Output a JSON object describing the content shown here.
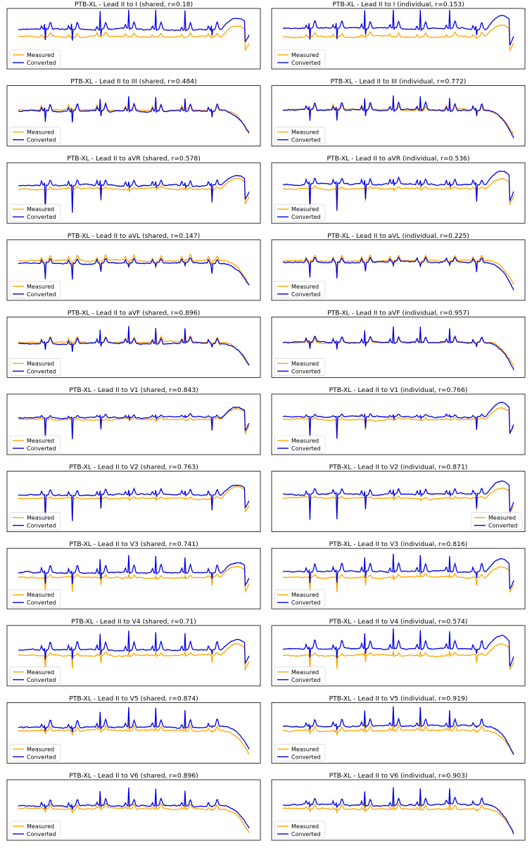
{
  "colors": {
    "measured": "#ffa500",
    "converted": "#0000e6",
    "frame": "#000000"
  },
  "legend_labels": {
    "measured": "Measured",
    "converted": "Converted"
  },
  "chart_data": [
    {
      "type": "line",
      "title": "PTB-XL - Lead II to I (shared, r=0.18)",
      "lead": "I",
      "mode": "shared",
      "r": 0.18,
      "legend_position": "lower-left",
      "axes_visible": false,
      "series": [
        {
          "name": "Measured",
          "color": "#ffa500"
        },
        {
          "name": "Converted",
          "color": "#0000e6"
        }
      ]
    },
    {
      "type": "line",
      "title": "PTB-XL - Lead II to I (individual, r=0.153)",
      "lead": "I",
      "mode": "individual",
      "r": 0.153,
      "legend_position": "lower-left",
      "axes_visible": false,
      "series": [
        {
          "name": "Measured",
          "color": "#ffa500"
        },
        {
          "name": "Converted",
          "color": "#0000e6"
        }
      ]
    },
    {
      "type": "line",
      "title": "PTB-XL - Lead II to III (shared, r=0.484)",
      "lead": "III",
      "mode": "shared",
      "r": 0.484,
      "legend_position": "lower-left",
      "axes_visible": false,
      "series": [
        {
          "name": "Measured",
          "color": "#ffa500"
        },
        {
          "name": "Converted",
          "color": "#0000e6"
        }
      ]
    },
    {
      "type": "line",
      "title": "PTB-XL - Lead II to III (individual, r=0.772)",
      "lead": "III",
      "mode": "individual",
      "r": 0.772,
      "legend_position": "lower-left",
      "axes_visible": false,
      "series": [
        {
          "name": "Measured",
          "color": "#ffa500"
        },
        {
          "name": "Converted",
          "color": "#0000e6"
        }
      ]
    },
    {
      "type": "line",
      "title": "PTB-XL - Lead II to aVR (shared, r=0.578)",
      "lead": "aVR",
      "mode": "shared",
      "r": 0.578,
      "legend_position": "lower-left",
      "axes_visible": false,
      "series": [
        {
          "name": "Measured",
          "color": "#ffa500"
        },
        {
          "name": "Converted",
          "color": "#0000e6"
        }
      ]
    },
    {
      "type": "line",
      "title": "PTB-XL - Lead II to aVR (individual, r=0.536)",
      "lead": "aVR",
      "mode": "individual",
      "r": 0.536,
      "legend_position": "lower-left",
      "axes_visible": false,
      "series": [
        {
          "name": "Measured",
          "color": "#ffa500"
        },
        {
          "name": "Converted",
          "color": "#0000e6"
        }
      ]
    },
    {
      "type": "line",
      "title": "PTB-XL - Lead II to aVL (shared, r=0.147)",
      "lead": "aVL",
      "mode": "shared",
      "r": 0.147,
      "legend_position": "lower-left",
      "axes_visible": false,
      "series": [
        {
          "name": "Measured",
          "color": "#ffa500"
        },
        {
          "name": "Converted",
          "color": "#0000e6"
        }
      ]
    },
    {
      "type": "line",
      "title": "PTB-XL - Lead II to aVL (individual, r=0.225)",
      "lead": "aVL",
      "mode": "individual",
      "r": 0.225,
      "legend_position": "lower-left",
      "axes_visible": false,
      "series": [
        {
          "name": "Measured",
          "color": "#ffa500"
        },
        {
          "name": "Converted",
          "color": "#0000e6"
        }
      ]
    },
    {
      "type": "line",
      "title": "PTB-XL - Lead II to aVF (shared, r=0.896)",
      "lead": "aVF",
      "mode": "shared",
      "r": 0.896,
      "legend_position": "lower-left",
      "axes_visible": false,
      "series": [
        {
          "name": "Measured",
          "color": "#ffa500"
        },
        {
          "name": "Converted",
          "color": "#0000e6"
        }
      ]
    },
    {
      "type": "line",
      "title": "PTB-XL - Lead II to aVF (individual, r=0.957)",
      "lead": "aVF",
      "mode": "individual",
      "r": 0.957,
      "legend_position": "lower-left",
      "axes_visible": false,
      "series": [
        {
          "name": "Measured",
          "color": "#ffa500"
        },
        {
          "name": "Converted",
          "color": "#0000e6"
        }
      ]
    },
    {
      "type": "line",
      "title": "PTB-XL - Lead II to V1 (shared, r=0.843)",
      "lead": "V1",
      "mode": "shared",
      "r": 0.843,
      "legend_position": "lower-left",
      "axes_visible": false,
      "series": [
        {
          "name": "Measured",
          "color": "#ffa500"
        },
        {
          "name": "Converted",
          "color": "#0000e6"
        }
      ]
    },
    {
      "type": "line",
      "title": "PTB-XL - Lead II to V1 (individual, r=0.766)",
      "lead": "V1",
      "mode": "individual",
      "r": 0.766,
      "legend_position": "lower-left",
      "axes_visible": false,
      "series": [
        {
          "name": "Measured",
          "color": "#ffa500"
        },
        {
          "name": "Converted",
          "color": "#0000e6"
        }
      ]
    },
    {
      "type": "line",
      "title": "PTB-XL - Lead II to V2 (shared, r=0.763)",
      "lead": "V2",
      "mode": "shared",
      "r": 0.763,
      "legend_position": "lower-left",
      "axes_visible": false,
      "series": [
        {
          "name": "Measured",
          "color": "#ffa500"
        },
        {
          "name": "Converted",
          "color": "#0000e6"
        }
      ]
    },
    {
      "type": "line",
      "title": "PTB-XL - Lead II to V2 (individual, r=0.871)",
      "lead": "V2",
      "mode": "individual",
      "r": 0.871,
      "legend_position": "lower-right",
      "axes_visible": false,
      "series": [
        {
          "name": "Measured",
          "color": "#ffa500"
        },
        {
          "name": "Converted",
          "color": "#0000e6"
        }
      ]
    },
    {
      "type": "line",
      "title": "PTB-XL - Lead II to V3 (shared, r=0.741)",
      "lead": "V3",
      "mode": "shared",
      "r": 0.741,
      "legend_position": "lower-left",
      "axes_visible": false,
      "series": [
        {
          "name": "Measured",
          "color": "#ffa500"
        },
        {
          "name": "Converted",
          "color": "#0000e6"
        }
      ]
    },
    {
      "type": "line",
      "title": "PTB-XL - Lead II to V3 (individual, r=0.816)",
      "lead": "V3",
      "mode": "individual",
      "r": 0.816,
      "legend_position": "lower-left",
      "axes_visible": false,
      "series": [
        {
          "name": "Measured",
          "color": "#ffa500"
        },
        {
          "name": "Converted",
          "color": "#0000e6"
        }
      ]
    },
    {
      "type": "line",
      "title": "PTB-XL - Lead II to V4 (shared, r=0.71)",
      "lead": "V4",
      "mode": "shared",
      "r": 0.71,
      "legend_position": "lower-left",
      "axes_visible": false,
      "series": [
        {
          "name": "Measured",
          "color": "#ffa500"
        },
        {
          "name": "Converted",
          "color": "#0000e6"
        }
      ]
    },
    {
      "type": "line",
      "title": "PTB-XL - Lead II to V4 (individual, r=0.574)",
      "lead": "V4",
      "mode": "individual",
      "r": 0.574,
      "legend_position": "lower-left",
      "axes_visible": false,
      "series": [
        {
          "name": "Measured",
          "color": "#ffa500"
        },
        {
          "name": "Converted",
          "color": "#0000e6"
        }
      ]
    },
    {
      "type": "line",
      "title": "PTB-XL - Lead II to V5 (shared, r=0.874)",
      "lead": "V5",
      "mode": "shared",
      "r": 0.874,
      "legend_position": "lower-left",
      "axes_visible": false,
      "series": [
        {
          "name": "Measured",
          "color": "#ffa500"
        },
        {
          "name": "Converted",
          "color": "#0000e6"
        }
      ]
    },
    {
      "type": "line",
      "title": "PTB-XL - Lead II to V5 (individual, r=0.919)",
      "lead": "V5",
      "mode": "individual",
      "r": 0.919,
      "legend_position": "lower-left",
      "axes_visible": false,
      "series": [
        {
          "name": "Measured",
          "color": "#ffa500"
        },
        {
          "name": "Converted",
          "color": "#0000e6"
        }
      ]
    },
    {
      "type": "line",
      "title": "PTB-XL - Lead II to V6 (shared, r=0.896)",
      "lead": "V6",
      "mode": "shared",
      "r": 0.896,
      "legend_position": "lower-left",
      "axes_visible": false,
      "series": [
        {
          "name": "Measured",
          "color": "#ffa500"
        },
        {
          "name": "Converted",
          "color": "#0000e6"
        }
      ]
    },
    {
      "type": "line",
      "title": "PTB-XL - Lead II to V6 (individual, r=0.903)",
      "lead": "V6",
      "mode": "individual",
      "r": 0.903,
      "legend_position": "lower-left",
      "axes_visible": false,
      "series": [
        {
          "name": "Measured",
          "color": "#ffa500"
        },
        {
          "name": "Converted",
          "color": "#0000e6"
        }
      ]
    }
  ]
}
